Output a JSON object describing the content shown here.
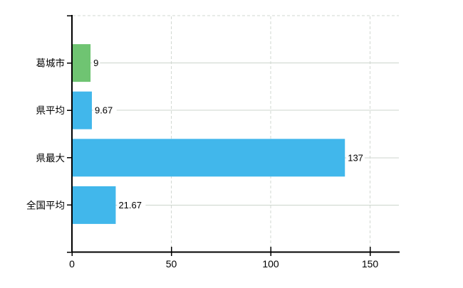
{
  "chart_data": {
    "type": "bar",
    "orientation": "horizontal",
    "title": "",
    "xlabel": "",
    "ylabel": "",
    "legend": "none",
    "categories": [
      "葛城市",
      "県平均",
      "県最大",
      "全国平均"
    ],
    "values": [
      9,
      9.67,
      137,
      21.67
    ],
    "value_labels": [
      "9",
      "9.67",
      "137",
      "21.67"
    ],
    "bar_colors": [
      "#6fc472",
      "#41b7eb",
      "#41b7eb",
      "#41b7eb"
    ],
    "x_axis": {
      "ticks": [
        0,
        50,
        100,
        150
      ],
      "tick_labels": [
        "0",
        "50",
        "100",
        "150"
      ],
      "range": [
        0,
        165
      ]
    },
    "grid": {
      "horizontal_lines": "solid, one per category center",
      "vertical_lines": "dashed, at ticks 50/100/150",
      "top_border": "dashed"
    },
    "colors": {
      "highlight_bar": "#6fc472",
      "default_bar": "#41b7eb",
      "grid_solid": "#ccd5cc",
      "grid_dashed": "#d2d8d2",
      "axis": "#000000",
      "text": "#000000",
      "background": "#ffffff"
    }
  }
}
